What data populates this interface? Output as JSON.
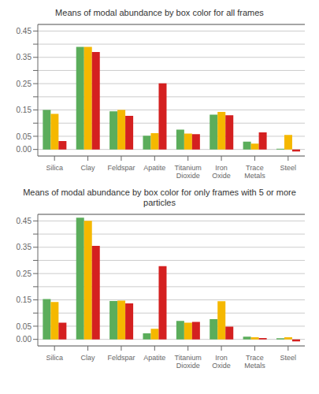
{
  "chart_data": [
    {
      "type": "bar",
      "title": "Means of modal abundance by box color for all frames",
      "categories": [
        "Silica",
        "Clay",
        "Feldspar",
        "Apatite",
        "Titanium\nDioxide",
        "Iron\nOxide",
        "Trace\nMetals",
        "Steel"
      ],
      "series": [
        {
          "color": "#5BAD5B",
          "values": [
            0.15,
            0.39,
            0.145,
            0.052,
            0.075,
            0.132,
            0.03,
            0.003
          ]
        },
        {
          "color": "#F5B800",
          "values": [
            0.135,
            0.39,
            0.15,
            0.062,
            0.06,
            0.143,
            0.022,
            0.055
          ]
        },
        {
          "color": "#D42020",
          "values": [
            0.032,
            0.37,
            0.128,
            0.251,
            0.058,
            0.13,
            0.065,
            -0.008
          ]
        }
      ],
      "ylim": [
        -0.025,
        0.475
      ],
      "yticks": [
        {
          "value": 0.0,
          "label": "0.00"
        },
        {
          "value": 0.05,
          "label": "0.05"
        },
        {
          "value": 0.1,
          "label": null
        },
        {
          "value": 0.15,
          "label": "0.15"
        },
        {
          "value": 0.2,
          "label": null
        },
        {
          "value": 0.25,
          "label": "0.25"
        },
        {
          "value": 0.3,
          "label": null
        },
        {
          "value": 0.35,
          "label": "0.35"
        },
        {
          "value": 0.4,
          "label": null
        },
        {
          "value": 0.45,
          "label": "0.45"
        }
      ],
      "grid": true
    },
    {
      "type": "bar",
      "title": "Means of modal abundance by box color for only frames with 5 or more particles",
      "categories": [
        "Silica",
        "Clay",
        "Feldspar",
        "Apatite",
        "Titanium\nDioxide",
        "Iron\nOxide",
        "Trace\nMetals",
        "Steel"
      ],
      "series": [
        {
          "color": "#5BAD5B",
          "values": [
            0.153,
            0.462,
            0.146,
            0.023,
            0.07,
            0.077,
            0.01,
            0.004
          ]
        },
        {
          "color": "#F5B800",
          "values": [
            0.142,
            0.45,
            0.147,
            0.04,
            0.063,
            0.145,
            0.008,
            0.008
          ]
        },
        {
          "color": "#D42020",
          "values": [
            0.063,
            0.355,
            0.137,
            0.278,
            0.066,
            0.048,
            0.005,
            -0.008
          ]
        }
      ],
      "ylim": [
        -0.025,
        0.475
      ],
      "yticks": [
        {
          "value": 0.0,
          "label": "0.00"
        },
        {
          "value": 0.05,
          "label": "0.05"
        },
        {
          "value": 0.1,
          "label": null
        },
        {
          "value": 0.15,
          "label": "0.15"
        },
        {
          "value": 0.2,
          "label": null
        },
        {
          "value": 0.25,
          "label": "0.25"
        },
        {
          "value": 0.3,
          "label": null
        },
        {
          "value": 0.35,
          "label": "0.35"
        },
        {
          "value": 0.4,
          "label": null
        },
        {
          "value": 0.45,
          "label": "0.45"
        }
      ],
      "grid": true
    }
  ]
}
